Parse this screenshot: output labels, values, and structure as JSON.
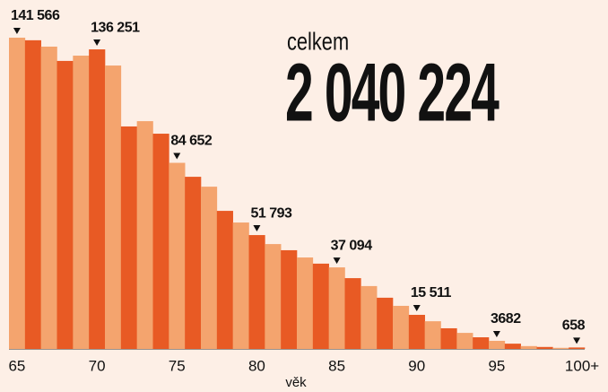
{
  "chart_data": {
    "type": "bar",
    "total_label": "celkem",
    "total": "2 040 224",
    "xlabel": "věk",
    "categories": [
      "65",
      null,
      null,
      null,
      null,
      "70",
      null,
      null,
      null,
      null,
      "75",
      null,
      null,
      null,
      null,
      "80",
      null,
      null,
      null,
      null,
      "85",
      null,
      null,
      null,
      null,
      "90",
      null,
      null,
      null,
      null,
      "95",
      null,
      null,
      null,
      null,
      "100+"
    ],
    "values": [
      141566,
      140400,
      137500,
      131000,
      133400,
      136251,
      128900,
      101200,
      103600,
      97900,
      84652,
      78300,
      73800,
      62800,
      57500,
      51793,
      47700,
      44900,
      41600,
      38800,
      37094,
      32200,
      28600,
      23300,
      19600,
      15511,
      12600,
      9400,
      7300,
      5300,
      3682,
      2400,
      1300,
      900,
      500,
      658
    ],
    "value_labels": [
      "141 566",
      null,
      null,
      null,
      null,
      "136 251",
      null,
      null,
      null,
      null,
      "84 652",
      null,
      null,
      null,
      null,
      "51 793",
      null,
      null,
      null,
      null,
      "37 094",
      null,
      null,
      null,
      null,
      "15 511",
      null,
      null,
      null,
      null,
      "3682",
      null,
      null,
      null,
      null,
      "658"
    ],
    "colors": [
      "#f4a46e",
      "#e85a24"
    ],
    "ylim": [
      0,
      145000
    ]
  }
}
